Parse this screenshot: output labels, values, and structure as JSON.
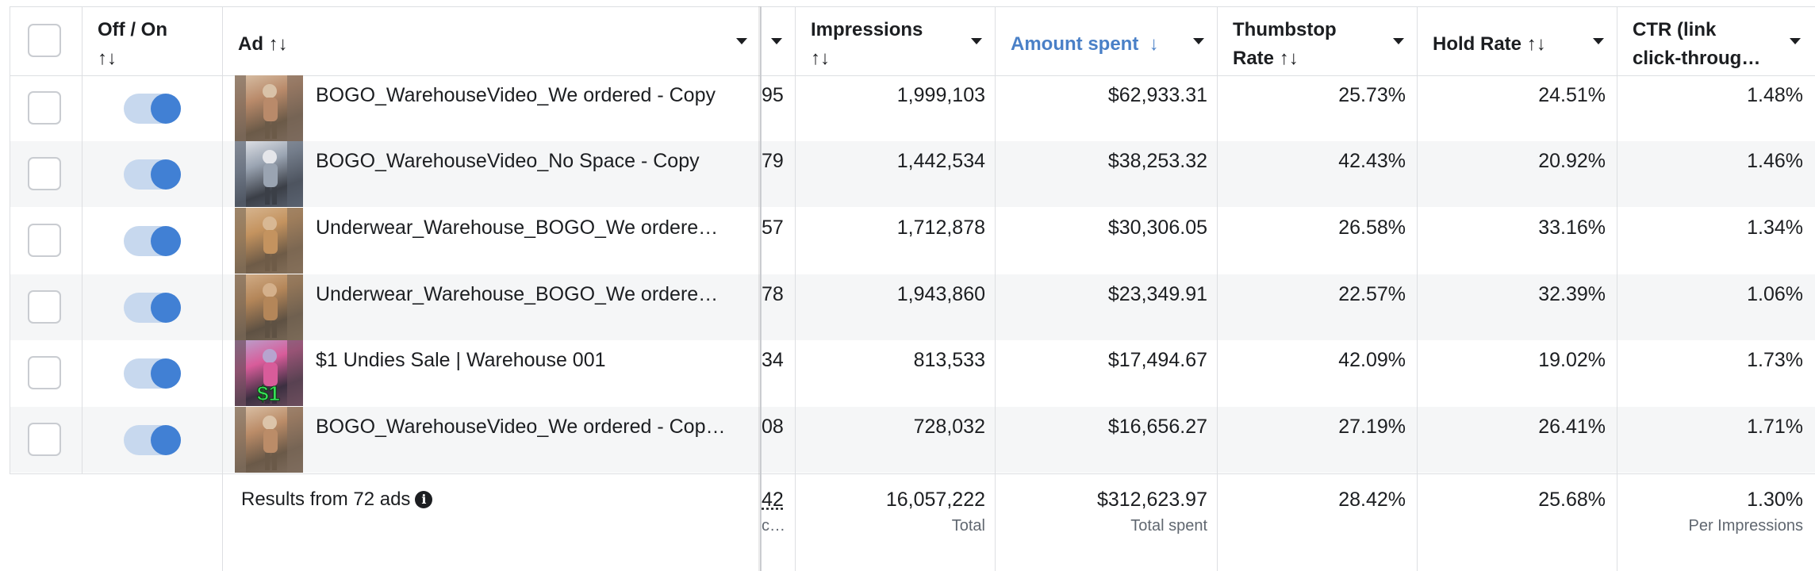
{
  "header": {
    "off_on": "Off / On",
    "ad": "Ad",
    "impressions": "Impressions",
    "amount_spent": "Amount spent",
    "thumbstop_line1": "Thumbstop",
    "thumbstop_line2": "Rate",
    "hold_rate": "Hold Rate",
    "ctr_line1": "CTR (link",
    "ctr_line2": "click-throug…",
    "sort_icon": "↑↓",
    "sort_desc_icon": "↓"
  },
  "rows": [
    {
      "name": "BOGO_WarehouseVideo_We ordered - Copy",
      "partial": "95",
      "impressions": "1,999,103",
      "amount": "$62,933.31",
      "thumbstop": "25.73%",
      "hold": "24.51%",
      "ctr": "1.48%"
    },
    {
      "name": "BOGO_WarehouseVideo_No Space - Copy",
      "partial": "79",
      "impressions": "1,442,534",
      "amount": "$38,253.32",
      "thumbstop": "42.43%",
      "hold": "20.92%",
      "ctr": "1.46%"
    },
    {
      "name": "Underwear_Warehouse_BOGO_We ordere…",
      "partial": "57",
      "impressions": "1,712,878",
      "amount": "$30,306.05",
      "thumbstop": "26.58%",
      "hold": "33.16%",
      "ctr": "1.34%"
    },
    {
      "name": "Underwear_Warehouse_BOGO_We ordere…",
      "partial": "78",
      "impressions": "1,943,860",
      "amount": "$23,349.91",
      "thumbstop": "22.57%",
      "hold": "32.39%",
      "ctr": "1.06%"
    },
    {
      "name": "$1 Undies Sale | Warehouse 001",
      "partial": "34",
      "impressions": "813,533",
      "amount": "$17,494.67",
      "thumbstop": "42.09%",
      "hold": "19.02%",
      "ctr": "1.73%"
    },
    {
      "name": "BOGO_WarehouseVideo_We ordered - Cop…",
      "partial": "08",
      "impressions": "728,032",
      "amount": "$16,656.27",
      "thumbstop": "27.19%",
      "hold": "26.41%",
      "ctr": "1.71%"
    }
  ],
  "thumb_badge": "$1",
  "footer": {
    "results": "Results from 72 ads",
    "info_icon": "i",
    "partial": "42",
    "partial_sub": "c…",
    "impressions": "16,057,222",
    "impressions_sub": "Total",
    "amount": "$312,623.97",
    "amount_sub": "Total spent",
    "thumbstop": "28.42%",
    "hold": "25.68%",
    "ctr": "1.30%",
    "ctr_sub": "Per Impressions"
  },
  "colors": {
    "accent": "#4a80c7",
    "toggle_on": "#4180d4",
    "alt_row": "#f5f6f7"
  }
}
